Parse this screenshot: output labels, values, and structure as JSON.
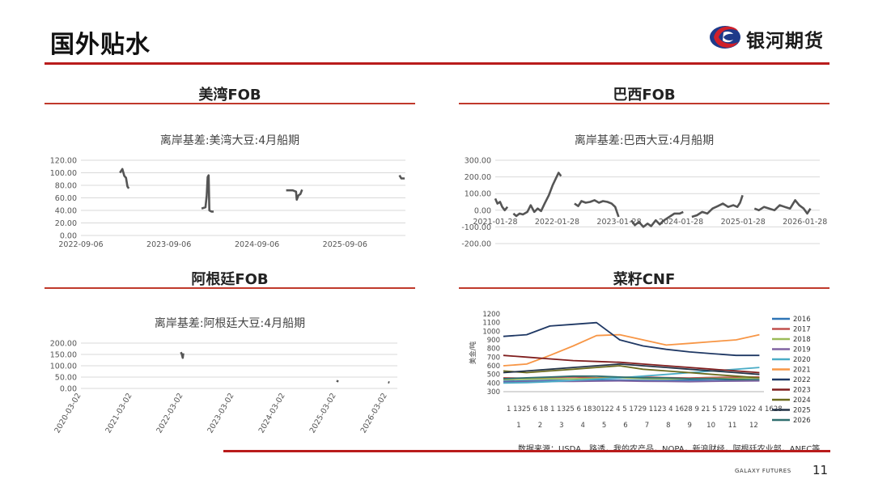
{
  "header": {
    "title": "国外贴水",
    "brand": "银河期货",
    "colors": {
      "accent": "#b91c1c",
      "logo_blue": "#1e3a8a",
      "logo_red": "#d0202a"
    }
  },
  "sections": [
    {
      "title": "美湾FOB"
    },
    {
      "title": "巴西FOB"
    },
    {
      "title": "阿根廷FOB"
    },
    {
      "title": "菜籽CNF"
    }
  ],
  "chart_data": [
    {
      "type": "line",
      "title": "离岸基差:美湾大豆:4月船期",
      "xlabel": "",
      "ylabel": "",
      "x_tick_labels": [
        "2022-09-06",
        "2023-09-06",
        "2024-09-06",
        "2025-09-06"
      ],
      "y_tick_labels": [
        "0.00",
        "20.00",
        "40.00",
        "60.00",
        "80.00",
        "100.00",
        "120.00"
      ],
      "xlim": [
        "2022-09-06",
        "2026-05-15"
      ],
      "ylim": [
        0,
        120
      ],
      "grid": true,
      "series": [
        {
          "color": "#555555",
          "segments": [
            [
              [
                "2023-02-15",
                100
              ],
              [
                "2023-02-25",
                106
              ],
              [
                "2023-03-05",
                95
              ],
              [
                "2023-03-12",
                92
              ],
              [
                "2023-03-18",
                78
              ],
              [
                "2023-03-24",
                75
              ]
            ],
            [
              [
                "2024-01-20",
                43
              ],
              [
                "2024-02-05",
                45
              ],
              [
                "2024-02-10",
                63
              ],
              [
                "2024-02-14",
                93
              ],
              [
                "2024-02-18",
                96
              ],
              [
                "2024-02-21",
                40
              ],
              [
                "2024-03-01",
                38
              ],
              [
                "2024-03-10",
                38
              ]
            ],
            [
              [
                "2025-01-05",
                72
              ],
              [
                "2025-02-01",
                72
              ],
              [
                "2025-02-15",
                70
              ],
              [
                "2025-02-18",
                57
              ],
              [
                "2025-02-25",
                64
              ],
              [
                "2025-03-05",
                66
              ],
              [
                "2025-03-12",
                73
              ]
            ],
            [
              [
                "2026-04-20",
                96
              ],
              [
                "2026-04-28",
                91
              ],
              [
                "2026-05-12",
                91
              ]
            ]
          ]
        }
      ]
    },
    {
      "type": "line",
      "title": "离岸基差:巴西大豆:4月船期",
      "xlabel": "",
      "ylabel": "",
      "x_tick_labels": [
        "2021-01-28",
        "2022-01-28",
        "2023-01-28",
        "2024-01-28",
        "2025-01-28",
        "2026-01-28"
      ],
      "y_tick_labels": [
        "-200.00",
        "-100.00",
        "0.00",
        "100.00",
        "200.00",
        "300.00"
      ],
      "xlim": [
        "2021-01-28",
        "2026-04-25"
      ],
      "ylim": [
        -200,
        300
      ],
      "grid": true,
      "series": [
        {
          "color": "#555555",
          "segments": [
            [
              [
                "2021-01-28",
                70
              ],
              [
                "2021-02-10",
                40
              ],
              [
                "2021-02-25",
                50
              ],
              [
                "2021-03-10",
                20
              ],
              [
                "2021-03-25",
                0
              ],
              [
                "2021-04-10",
                20
              ]
            ],
            [
              [
                "2021-05-15",
                -20
              ],
              [
                "2021-06-01",
                -35
              ],
              [
                "2021-06-20",
                -20
              ],
              [
                "2021-07-10",
                -25
              ],
              [
                "2021-08-05",
                -10
              ],
              [
                "2021-08-25",
                30
              ],
              [
                "2021-09-15",
                -10
              ],
              [
                "2021-10-05",
                10
              ],
              [
                "2021-10-25",
                -5
              ],
              [
                "2021-11-15",
                40
              ],
              [
                "2021-12-10",
                90
              ],
              [
                "2022-01-01",
                150
              ],
              [
                "2022-01-20",
                190
              ],
              [
                "2022-02-05",
                225
              ],
              [
                "2022-02-20",
                205
              ]
            ],
            [
              [
                "2022-05-10",
                40
              ],
              [
                "2022-06-01",
                25
              ],
              [
                "2022-06-20",
                55
              ],
              [
                "2022-07-15",
                45
              ],
              [
                "2022-08-10",
                50
              ],
              [
                "2022-09-05",
                60
              ],
              [
                "2022-10-01",
                45
              ],
              [
                "2022-10-25",
                55
              ],
              [
                "2022-11-20",
                50
              ],
              [
                "2022-12-15",
                40
              ],
              [
                "2023-01-05",
                20
              ],
              [
                "2023-01-25",
                -40
              ]
            ],
            [
              [
                "2023-04-10",
                -60
              ],
              [
                "2023-05-01",
                -90
              ],
              [
                "2023-05-25",
                -70
              ],
              [
                "2023-06-20",
                -100
              ],
              [
                "2023-07-15",
                -80
              ],
              [
                "2023-08-05",
                -95
              ],
              [
                "2023-09-01",
                -60
              ],
              [
                "2023-09-25",
                -85
              ],
              [
                "2023-10-20",
                -60
              ],
              [
                "2023-11-20",
                -40
              ],
              [
                "2023-12-20",
                -20
              ],
              [
                "2024-01-20",
                -20
              ],
              [
                "2024-02-10",
                -10
              ]
            ],
            [
              [
                "2024-04-01",
                -40
              ],
              [
                "2024-05-01",
                -30
              ],
              [
                "2024-06-01",
                -10
              ],
              [
                "2024-07-01",
                -20
              ],
              [
                "2024-08-01",
                10
              ],
              [
                "2024-09-01",
                25
              ],
              [
                "2024-10-01",
                40
              ],
              [
                "2024-11-01",
                20
              ],
              [
                "2024-12-01",
                30
              ],
              [
                "2024-12-25",
                20
              ],
              [
                "2025-01-10",
                45
              ],
              [
                "2025-01-25",
                90
              ]
            ],
            [
              [
                "2025-04-05",
                10
              ],
              [
                "2025-05-01",
                0
              ],
              [
                "2025-06-01",
                20
              ],
              [
                "2025-07-01",
                10
              ],
              [
                "2025-08-01",
                0
              ],
              [
                "2025-09-01",
                30
              ],
              [
                "2025-10-01",
                20
              ],
              [
                "2025-11-01",
                10
              ],
              [
                "2025-12-01",
                60
              ],
              [
                "2025-12-25",
                30
              ],
              [
                "2026-01-20",
                10
              ],
              [
                "2026-02-10",
                -20
              ],
              [
                "2026-03-01",
                10
              ]
            ]
          ]
        }
      ]
    },
    {
      "type": "line",
      "title": "离岸基差:阿根廷大豆:4月船期",
      "xlabel": "",
      "ylabel": "",
      "x_tick_labels": [
        "2020-03-02",
        "2021-03-02",
        "2022-03-02",
        "2023-03-02",
        "2024-03-02",
        "2025-03-02",
        "2026-03-02"
      ],
      "y_tick_labels": [
        "0.00",
        "50.00",
        "100.00",
        "150.00",
        "200.00"
      ],
      "xlim": [
        "2020-03-02",
        "2026-05-15"
      ],
      "ylim": [
        0,
        200
      ],
      "grid": true,
      "series": [
        {
          "color": "#555555",
          "segments": [
            [
              [
                "2022-02-15",
                160
              ],
              [
                "2022-02-22",
                152
              ],
              [
                "2022-03-01",
                135
              ],
              [
                "2022-03-05",
                155
              ]
            ],
            [
              [
                "2025-03-10",
                28
              ],
              [
                "2025-03-15",
                36
              ]
            ],
            [
              [
                "2026-03-10",
                28
              ],
              [
                "2026-03-20",
                26
              ]
            ]
          ]
        }
      ]
    },
    {
      "type": "line",
      "title": "",
      "xlabel": "",
      "ylabel": "美金/吨",
      "x_tick_labels_top": "1 1325 6 18 1 1325 6 1830122 4 5 1729 1123 4 1628 9 21 5 1729 1022 4 1628",
      "x_tick_labels": [
        "1",
        "2",
        "3",
        "4",
        "5",
        "6",
        "7",
        "8",
        "9",
        "10",
        "11",
        "12"
      ],
      "xlim": [
        1,
        12.5
      ],
      "ylim": [
        300,
        1200
      ],
      "y_tick_labels": [
        "300",
        "400",
        "500",
        "600",
        "700",
        "800",
        "900",
        "1000",
        "1100",
        "1200"
      ],
      "legend": "right",
      "series": [
        {
          "name": "2016",
          "color": "#2e75b6",
          "values": [
            420,
            425,
            430,
            428,
            432,
            435,
            430,
            428,
            432,
            430,
            428,
            432
          ]
        },
        {
          "name": "2017",
          "color": "#c0504d",
          "values": [
            460,
            455,
            465,
            470,
            460,
            465,
            470,
            462,
            458,
            465,
            468,
            470
          ]
        },
        {
          "name": "2018",
          "color": "#9bbb59",
          "values": [
            440,
            445,
            450,
            448,
            455,
            460,
            452,
            448,
            450,
            455,
            452,
            460
          ]
        },
        {
          "name": "2019",
          "color": "#8064a2",
          "values": [
            410,
            415,
            420,
            418,
            422,
            425,
            420,
            418,
            415,
            420,
            422,
            425
          ]
        },
        {
          "name": "2020",
          "color": "#4bacc6",
          "values": [
            400,
            405,
            415,
            430,
            445,
            460,
            480,
            500,
            520,
            540,
            560,
            580
          ]
        },
        {
          "name": "2021",
          "color": "#f79646",
          "values": [
            600,
            620,
            720,
            830,
            950,
            960,
            900,
            840,
            860,
            880,
            900,
            960
          ]
        },
        {
          "name": "2022",
          "color": "#1f3864",
          "values": [
            940,
            960,
            1060,
            1080,
            1100,
            900,
            830,
            790,
            760,
            740,
            720,
            720
          ]
        },
        {
          "name": "2023",
          "color": "#7f1d1d",
          "values": [
            720,
            700,
            680,
            660,
            650,
            640,
            620,
            600,
            580,
            560,
            540,
            520
          ]
        },
        {
          "name": "2024",
          "color": "#6b6b1e",
          "values": [
            540,
            520,
            540,
            560,
            580,
            600,
            560,
            540,
            520,
            500,
            480,
            460
          ]
        },
        {
          "name": "2025",
          "color": "#243447",
          "values": [
            520,
            540,
            560,
            580,
            600,
            620,
            600,
            580,
            560,
            540,
            520,
            500
          ]
        },
        {
          "name": "2026",
          "color": "#2f6f6f",
          "values": [
            450,
            460,
            470,
            480,
            480,
            470,
            460,
            460,
            450,
            450,
            440,
            440
          ]
        }
      ]
    }
  ],
  "footer": {
    "source": "数据来源：USDA、路透，我的农产品，NOPA，新浪财经，阿根廷农业部，ANEC等",
    "brand": "GALAXY FUTURES",
    "page": "11"
  }
}
